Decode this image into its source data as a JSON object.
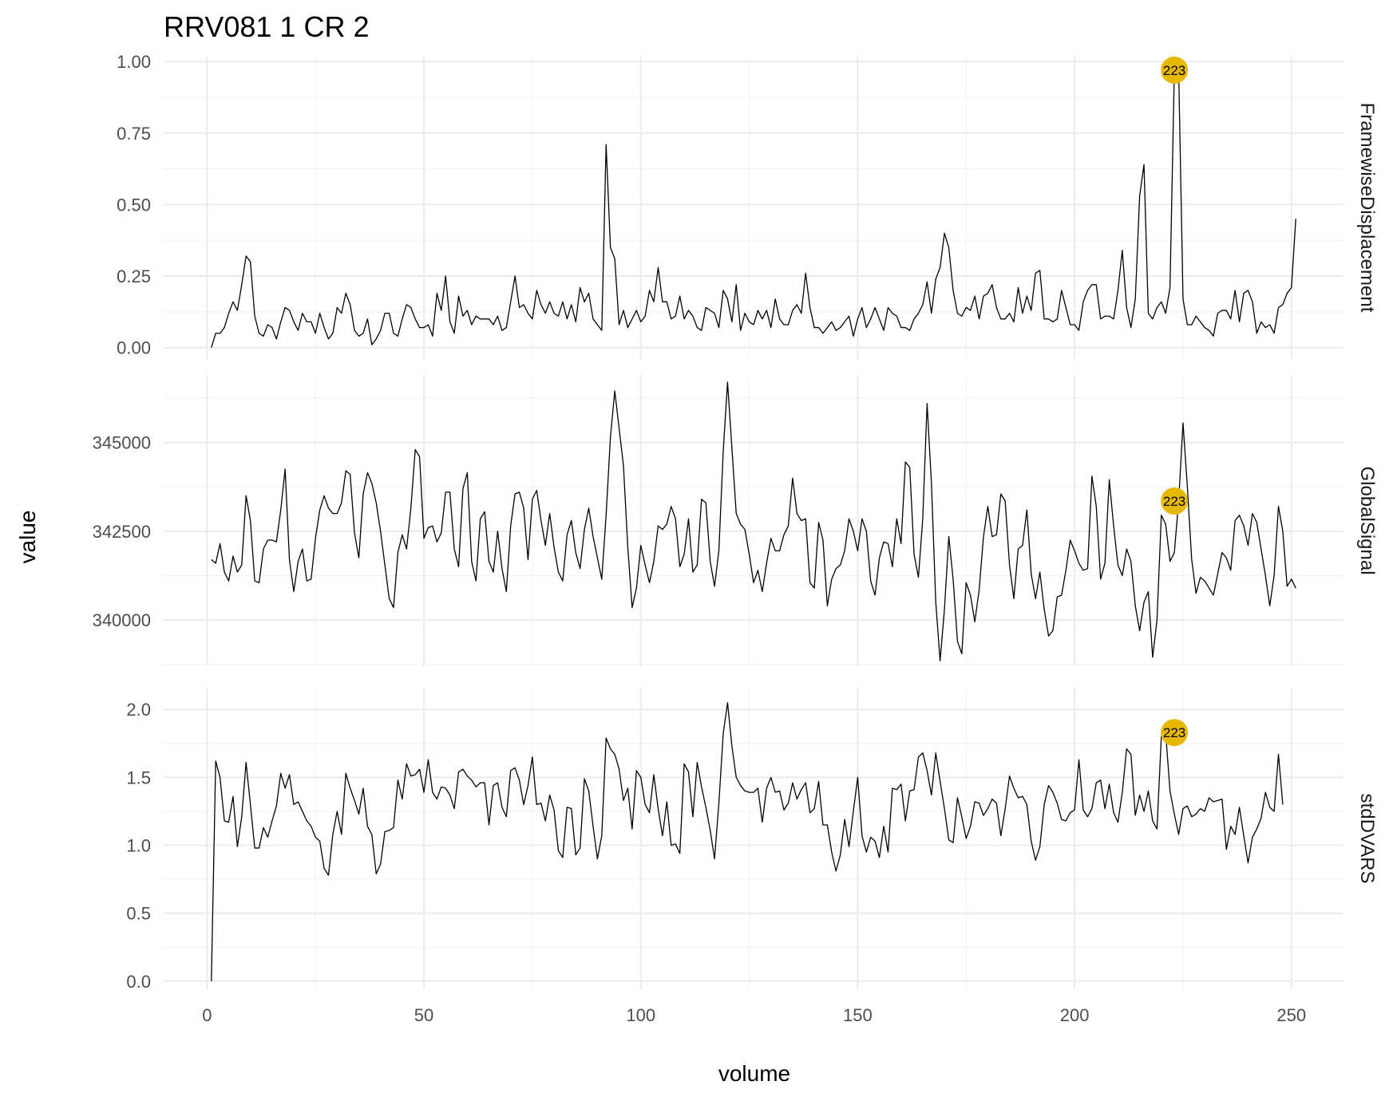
{
  "chart_data": {
    "type": "line",
    "title": "RRV081  1  CR  2",
    "xlabel": "volume",
    "ylabel": "value",
    "xlim": [
      -10,
      262
    ],
    "x_ticks": [
      0,
      50,
      100,
      150,
      200,
      250
    ],
    "x_tick_labels": [
      "0",
      "50",
      "100",
      "150",
      "200",
      "250"
    ],
    "grid": true,
    "highlight_volume": 223,
    "highlight_label": "223",
    "highlight_color": "#E7B800",
    "line_color": "#000000",
    "panels": [
      {
        "name": "FramewiseDisplacement",
        "ylim": [
          -0.04,
          1.02
        ],
        "y_ticks": [
          0,
          0.25,
          0.5,
          0.75,
          1.0
        ],
        "y_tick_labels": [
          "0.00",
          "0.25",
          "0.50",
          "0.75",
          "1.00"
        ],
        "highlight_value": 0.97,
        "x_start": 1,
        "values": [
          0.0,
          0.05,
          0.05,
          0.07,
          0.12,
          0.16,
          0.13,
          0.22,
          0.32,
          0.3,
          0.11,
          0.05,
          0.04,
          0.08,
          0.07,
          0.03,
          0.09,
          0.14,
          0.13,
          0.09,
          0.06,
          0.12,
          0.09,
          0.09,
          0.05,
          0.12,
          0.07,
          0.03,
          0.05,
          0.14,
          0.12,
          0.19,
          0.15,
          0.06,
          0.04,
          0.05,
          0.1,
          0.01,
          0.03,
          0.06,
          0.12,
          0.12,
          0.05,
          0.04,
          0.1,
          0.15,
          0.14,
          0.1,
          0.07,
          0.07,
          0.08,
          0.04,
          0.19,
          0.13,
          0.25,
          0.09,
          0.05,
          0.18,
          0.11,
          0.13,
          0.08,
          0.11,
          0.1,
          0.1,
          0.1,
          0.08,
          0.11,
          0.06,
          0.07,
          0.16,
          0.25,
          0.14,
          0.15,
          0.12,
          0.1,
          0.2,
          0.15,
          0.12,
          0.16,
          0.12,
          0.11,
          0.16,
          0.1,
          0.15,
          0.09,
          0.21,
          0.16,
          0.19,
          0.1,
          0.08,
          0.06,
          0.71,
          0.35,
          0.31,
          0.08,
          0.13,
          0.07,
          0.1,
          0.13,
          0.09,
          0.11,
          0.2,
          0.16,
          0.28,
          0.16,
          0.16,
          0.1,
          0.11,
          0.18,
          0.1,
          0.13,
          0.11,
          0.07,
          0.06,
          0.14,
          0.13,
          0.12,
          0.07,
          0.2,
          0.17,
          0.09,
          0.22,
          0.06,
          0.12,
          0.09,
          0.08,
          0.13,
          0.1,
          0.13,
          0.07,
          0.17,
          0.1,
          0.08,
          0.08,
          0.13,
          0.15,
          0.12,
          0.26,
          0.14,
          0.07,
          0.07,
          0.05,
          0.07,
          0.09,
          0.06,
          0.07,
          0.09,
          0.11,
          0.04,
          0.1,
          0.14,
          0.07,
          0.1,
          0.14,
          0.1,
          0.06,
          0.14,
          0.12,
          0.11,
          0.07,
          0.07,
          0.06,
          0.1,
          0.12,
          0.15,
          0.23,
          0.12,
          0.24,
          0.28,
          0.4,
          0.35,
          0.2,
          0.12,
          0.11,
          0.14,
          0.13,
          0.18,
          0.1,
          0.18,
          0.19,
          0.22,
          0.14,
          0.1,
          0.1,
          0.12,
          0.09,
          0.21,
          0.12,
          0.18,
          0.13,
          0.26,
          0.27,
          0.1,
          0.1,
          0.09,
          0.1,
          0.2,
          0.14,
          0.08,
          0.08,
          0.06,
          0.16,
          0.2,
          0.22,
          0.22,
          0.1,
          0.11,
          0.11,
          0.1,
          0.2,
          0.34,
          0.14,
          0.07,
          0.17,
          0.53,
          0.64,
          0.12,
          0.1,
          0.14,
          0.16,
          0.12,
          0.21,
          0.97,
          0.97,
          0.17,
          0.08,
          0.08,
          0.11,
          0.09,
          0.07,
          0.06,
          0.04,
          0.12,
          0.13,
          0.13,
          0.1,
          0.2,
          0.09,
          0.19,
          0.2,
          0.16,
          0.05,
          0.09,
          0.07,
          0.08,
          0.05,
          0.14,
          0.15,
          0.19,
          0.21,
          0.45
        ]
      },
      {
        "name": "GlobalSignal",
        "ylim": [
          338700,
          346900
        ],
        "y_ticks": [
          340000,
          342500,
          345000
        ],
        "y_tick_labels": [
          "340000",
          "342500",
          "345000"
        ],
        "highlight_value": 343350,
        "x_start": 1,
        "values": [
          341700,
          341600,
          342150,
          341350,
          341100,
          341800,
          341350,
          341550,
          343500,
          342800,
          341100,
          341050,
          342000,
          342250,
          342250,
          342200,
          343100,
          344250,
          341700,
          340800,
          341650,
          342000,
          341100,
          341150,
          342300,
          343100,
          343500,
          343150,
          343000,
          343000,
          343300,
          344200,
          344100,
          342450,
          341750,
          343550,
          344150,
          343850,
          343300,
          342500,
          341550,
          340600,
          340350,
          341900,
          342400,
          342000,
          343150,
          344800,
          344600,
          342300,
          342600,
          342650,
          342200,
          342450,
          343600,
          343600,
          342000,
          341500,
          343700,
          344150,
          341650,
          341100,
          342850,
          343050,
          341650,
          341350,
          342500,
          341450,
          340800,
          342650,
          343550,
          343600,
          343150,
          341700,
          343400,
          343650,
          342800,
          342100,
          343000,
          342050,
          341350,
          341100,
          342400,
          342800,
          341900,
          341450,
          342550,
          343150,
          342350,
          341750,
          341150,
          342950,
          345150,
          346450,
          345400,
          344350,
          342050,
          340350,
          340900,
          342100,
          341550,
          341050,
          341650,
          342650,
          342550,
          342700,
          343200,
          342850,
          341500,
          341850,
          342850,
          341350,
          341550,
          343400,
          343300,
          341650,
          340950,
          341950,
          344750,
          346700,
          344850,
          343000,
          342700,
          342550,
          341850,
          341050,
          341400,
          340800,
          341600,
          342300,
          341950,
          341950,
          342400,
          342650,
          344000,
          343000,
          342800,
          342850,
          341050,
          340900,
          342750,
          342250,
          340400,
          341150,
          341450,
          341550,
          341950,
          342850,
          342500,
          341950,
          342850,
          342500,
          341100,
          340700,
          341750,
          342200,
          342150,
          341500,
          342850,
          342150,
          344450,
          344300,
          341850,
          341200,
          342850,
          346100,
          343850,
          340500,
          338850,
          340300,
          342350,
          341150,
          339400,
          339050,
          341050,
          340700,
          339950,
          340850,
          342350,
          343200,
          342350,
          342400,
          343550,
          343350,
          341550,
          340600,
          342000,
          342100,
          343100,
          341300,
          340600,
          341350,
          340300,
          339550,
          339700,
          340650,
          340700,
          341400,
          342250,
          341950,
          341600,
          341400,
          341450,
          344050,
          343200,
          341150,
          341600,
          343950,
          342650,
          341550,
          341250,
          342000,
          341650,
          340400,
          339700,
          340500,
          340800,
          338950,
          340000,
          342950,
          342700,
          341650,
          341900,
          343350,
          345550,
          343750,
          341700,
          340750,
          341200,
          341100,
          340900,
          340700,
          341300,
          341900,
          341750,
          341400,
          342800,
          342950,
          342650,
          342100,
          343000,
          342750,
          342000,
          341250,
          340400,
          341250,
          343200,
          342500,
          340950,
          341150,
          340900
        ]
      },
      {
        "name": "stdDVARS",
        "ylim": [
          -0.06,
          2.16
        ],
        "y_ticks": [
          0.0,
          0.5,
          1.0,
          1.5,
          2.0
        ],
        "y_tick_labels": [
          "0.0",
          "0.5",
          "1.0",
          "1.5",
          "2.0"
        ],
        "highlight_value": 1.83,
        "x_start": 1,
        "values": [
          0.0,
          1.62,
          1.5,
          1.18,
          1.17,
          1.36,
          0.99,
          1.21,
          1.61,
          1.3,
          0.98,
          0.98,
          1.13,
          1.06,
          1.18,
          1.29,
          1.53,
          1.42,
          1.52,
          1.3,
          1.32,
          1.25,
          1.18,
          1.14,
          1.06,
          1.03,
          0.83,
          0.78,
          1.08,
          1.25,
          1.08,
          1.53,
          1.42,
          1.33,
          1.23,
          1.42,
          1.14,
          1.08,
          0.79,
          0.86,
          1.1,
          1.11,
          1.13,
          1.48,
          1.34,
          1.6,
          1.51,
          1.52,
          1.56,
          1.39,
          1.63,
          1.39,
          1.34,
          1.43,
          1.42,
          1.37,
          1.27,
          1.54,
          1.56,
          1.51,
          1.48,
          1.43,
          1.46,
          1.46,
          1.15,
          1.44,
          1.46,
          1.28,
          1.21,
          1.55,
          1.57,
          1.48,
          1.3,
          1.44,
          1.65,
          1.3,
          1.31,
          1.18,
          1.37,
          1.26,
          0.96,
          0.91,
          1.28,
          1.27,
          0.93,
          0.98,
          1.49,
          1.4,
          1.14,
          0.9,
          1.07,
          1.79,
          1.71,
          1.67,
          1.56,
          1.33,
          1.42,
          1.12,
          1.55,
          1.5,
          1.3,
          1.24,
          1.52,
          1.27,
          1.07,
          1.32,
          1.0,
          1.01,
          0.94,
          1.6,
          1.54,
          1.21,
          1.61,
          1.43,
          1.28,
          1.11,
          0.9,
          1.31,
          1.82,
          2.05,
          1.73,
          1.5,
          1.44,
          1.4,
          1.39,
          1.39,
          1.42,
          1.17,
          1.42,
          1.5,
          1.39,
          1.4,
          1.26,
          1.31,
          1.46,
          1.34,
          1.41,
          1.46,
          1.24,
          1.27,
          1.47,
          1.15,
          1.15,
          0.95,
          0.81,
          0.93,
          1.19,
          0.99,
          1.25,
          1.5,
          1.07,
          0.95,
          1.06,
          1.03,
          0.91,
          1.14,
          0.95,
          1.42,
          1.41,
          1.45,
          1.18,
          1.4,
          1.41,
          1.65,
          1.68,
          1.55,
          1.37,
          1.68,
          1.47,
          1.27,
          1.04,
          1.02,
          1.35,
          1.21,
          1.05,
          1.14,
          1.32,
          1.31,
          1.22,
          1.27,
          1.34,
          1.31,
          1.07,
          1.27,
          1.51,
          1.42,
          1.35,
          1.36,
          1.3,
          1.03,
          0.89,
          0.99,
          1.3,
          1.44,
          1.39,
          1.31,
          1.19,
          1.18,
          1.24,
          1.26,
          1.63,
          1.26,
          1.21,
          1.27,
          1.46,
          1.48,
          1.27,
          1.45,
          1.24,
          1.17,
          1.39,
          1.71,
          1.67,
          1.22,
          1.37,
          1.25,
          1.4,
          1.18,
          1.12,
          1.8,
          1.83,
          1.4,
          1.23,
          1.08,
          1.27,
          1.29,
          1.21,
          1.23,
          1.27,
          1.25,
          1.35,
          1.32,
          1.33,
          1.34,
          0.97,
          1.14,
          1.08,
          1.28,
          1.07,
          0.87,
          1.06,
          1.12,
          1.2,
          1.39,
          1.28,
          1.25,
          1.67,
          1.3
        ]
      }
    ]
  }
}
